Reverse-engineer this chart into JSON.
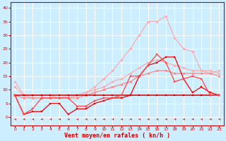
{
  "x": [
    0,
    1,
    2,
    3,
    4,
    5,
    6,
    7,
    8,
    9,
    10,
    11,
    12,
    13,
    14,
    15,
    16,
    17,
    18,
    19,
    20,
    21,
    22,
    23
  ],
  "lines": [
    {
      "y": [
        13,
        8,
        7,
        7,
        7,
        7,
        7,
        8,
        9,
        11,
        14,
        17,
        21,
        25,
        30,
        35,
        35,
        37,
        29,
        25,
        24,
        17,
        16,
        17
      ],
      "color": "#ffaaaa",
      "lw": 0.9,
      "marker": "o",
      "ms": 2.0,
      "alpha": 1.0
    },
    {
      "y": [
        11,
        8,
        8,
        8,
        8,
        7,
        8,
        8,
        9,
        10,
        11,
        13,
        14,
        16,
        18,
        20,
        21,
        20,
        19,
        18,
        17,
        17,
        17,
        16
      ],
      "color": "#ffaaaa",
      "lw": 0.9,
      "marker": "o",
      "ms": 2.0,
      "alpha": 1.0
    },
    {
      "y": [
        8,
        7,
        7,
        7,
        7,
        7,
        7,
        7,
        8,
        9,
        10,
        11,
        12,
        13,
        15,
        16,
        17,
        17,
        16,
        16,
        16,
        16,
        16,
        15
      ],
      "color": "#ff8888",
      "lw": 0.9,
      "marker": "o",
      "ms": 2.0,
      "alpha": 1.0
    },
    {
      "y": [
        8,
        8,
        8,
        8,
        8,
        8,
        8,
        8,
        8,
        8,
        8,
        8,
        8,
        8,
        8,
        8,
        8,
        8,
        8,
        8,
        8,
        8,
        8,
        8
      ],
      "color": "#cc0000",
      "lw": 1.1,
      "marker": "s",
      "ms": 1.8,
      "alpha": 1.0
    },
    {
      "y": [
        8,
        1,
        2,
        2,
        5,
        5,
        1,
        3,
        3,
        5,
        6,
        7,
        7,
        8,
        15,
        19,
        20,
        22,
        22,
        14,
        9,
        11,
        9,
        8
      ],
      "color": "#ee0000",
      "lw": 0.9,
      "marker": "s",
      "ms": 1.8,
      "alpha": 1.0
    },
    {
      "y": [
        8,
        1,
        3,
        7,
        7,
        7,
        7,
        4,
        4,
        6,
        7,
        7,
        8,
        15,
        15,
        19,
        23,
        20,
        13,
        14,
        15,
        14,
        8,
        8
      ],
      "color": "#ff4444",
      "lw": 0.9,
      "marker": "s",
      "ms": 1.8,
      "alpha": 1.0
    }
  ],
  "xlabel": "Vent moyen/en rafales ( kn/h )",
  "xlim": [
    -0.5,
    23.5
  ],
  "ylim": [
    -3,
    42
  ],
  "yticks": [
    0,
    5,
    10,
    15,
    20,
    25,
    30,
    35,
    40
  ],
  "xticks": [
    0,
    1,
    2,
    3,
    4,
    5,
    6,
    7,
    8,
    9,
    10,
    11,
    12,
    13,
    14,
    15,
    16,
    17,
    18,
    19,
    20,
    21,
    22,
    23
  ],
  "bg_color": "#cceeff",
  "grid_color": "#ffffff",
  "axis_color": "#cc0000",
  "arrow_color": "#dd2222",
  "xlabel_fontsize": 6.0,
  "tick_fontsize": 4.5
}
